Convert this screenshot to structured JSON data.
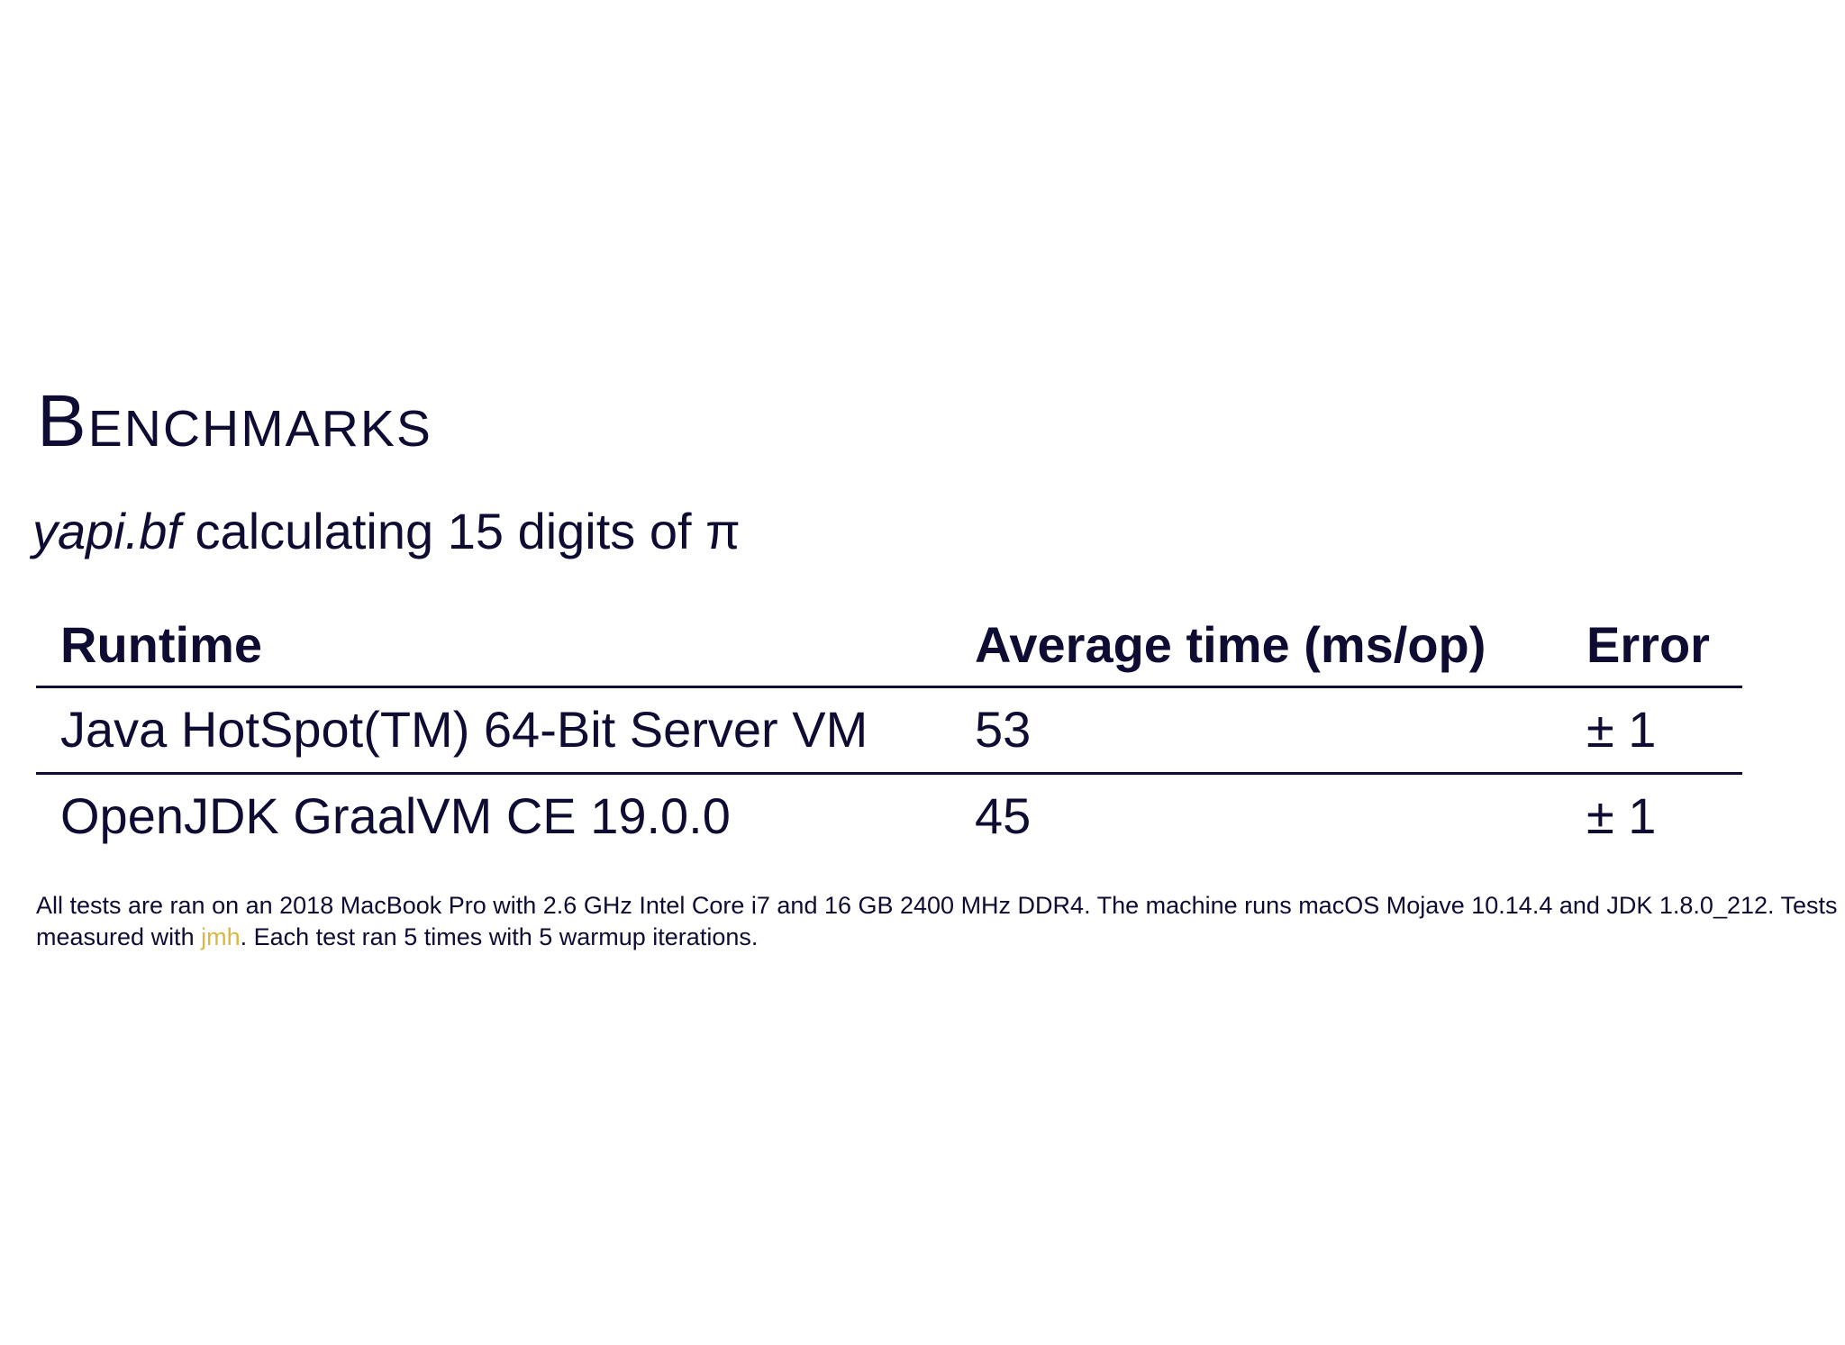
{
  "title": "Benchmarks",
  "subtitle": {
    "file": "yapi.bf",
    "rest": " calculating 15 digits of π"
  },
  "table": {
    "headers": [
      "Runtime",
      "Average time (ms/op)",
      "Error"
    ],
    "rows": [
      [
        "Java HotSpot(TM) 64-Bit Server VM",
        "53",
        "± 1"
      ],
      [
        "OpenJDK GraalVM CE 19.0.0",
        "45",
        "± 1"
      ]
    ]
  },
  "note": {
    "before_link": "All tests are ran on an 2018 MacBook Pro with 2.6 GHz Intel Core i7 and 16 GB 2400 MHz DDR4. The machine runs macOS Mojave 10.14.4 and JDK 1.8.0_212. Tests measured with ",
    "link_text": "jmh",
    "after_link": ". Each test ran 5 times with 5 warmup iterations."
  },
  "colors": {
    "text": "#0f0c33",
    "link": "#d9b840",
    "background": "#ffffff"
  }
}
